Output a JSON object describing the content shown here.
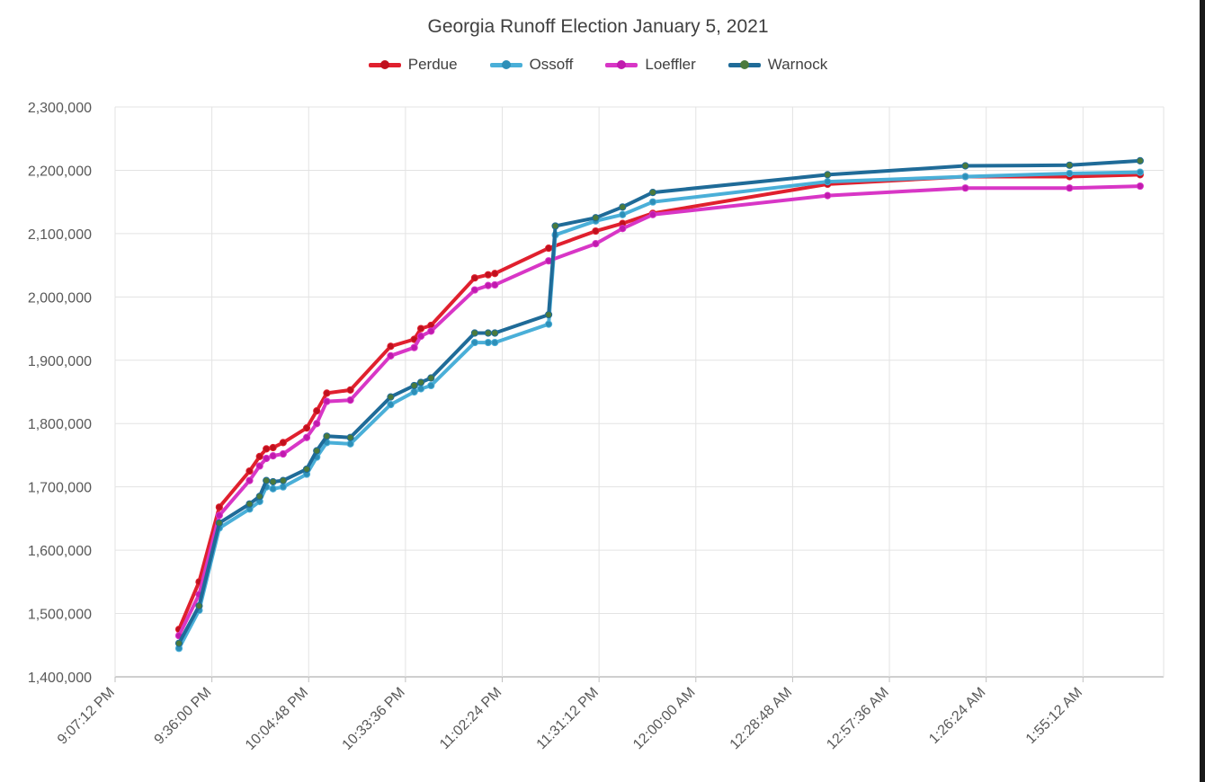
{
  "chart_data": {
    "type": "line",
    "title": "Georgia Runoff Election January 5, 2021",
    "xlabel": "",
    "ylabel": "",
    "ylim": [
      1400000,
      2300000
    ],
    "y_ticks": [
      1400000,
      1500000,
      1600000,
      1700000,
      1800000,
      1900000,
      2000000,
      2100000,
      2200000,
      2300000
    ],
    "x_ticks": [
      "9:07:12 PM",
      "9:36:00 PM",
      "10:04:48 PM",
      "10:33:36 PM",
      "11:02:24 PM",
      "11:31:12 PM",
      "12:00:00 AM",
      "12:28:48 AM",
      "12:57:36 AM",
      "1:26:24 AM",
      "1:55:12 AM"
    ],
    "x_tick_minutes": [
      0,
      28.8,
      57.6,
      86.4,
      115.2,
      144,
      172.8,
      201.6,
      230.4,
      259.2,
      288
    ],
    "grid": true,
    "legend_position": "top",
    "series": [
      {
        "name": "Perdue",
        "color": "#e0202e",
        "marker_color": "#c0101e",
        "x": [
          19,
          25,
          31,
          40,
          43,
          45,
          47,
          50,
          57,
          60,
          63,
          70,
          82,
          89,
          91,
          94,
          107,
          111,
          113,
          129,
          143,
          151,
          160,
          212,
          253,
          284,
          305
        ],
        "y": [
          1475000,
          1550000,
          1668000,
          1725000,
          1748000,
          1760000,
          1762000,
          1770000,
          1793000,
          1820000,
          1848000,
          1853000,
          1922000,
          1933000,
          1950000,
          1955000,
          2030000,
          2035000,
          2037000,
          2077000,
          2104000,
          2116000,
          2132000,
          2178000,
          2190000,
          2190000,
          2193000
        ]
      },
      {
        "name": "Ossoff",
        "color": "#4aafd8",
        "marker_color": "#2d8fb8",
        "x": [
          19,
          25,
          31,
          40,
          43,
          45,
          47,
          50,
          57,
          60,
          63,
          70,
          82,
          89,
          91,
          94,
          107,
          111,
          113,
          129,
          131,
          143,
          151,
          160,
          212,
          253,
          284,
          305
        ],
        "y": [
          1445000,
          1505000,
          1635000,
          1665000,
          1677000,
          1700000,
          1697000,
          1700000,
          1720000,
          1747000,
          1770000,
          1768000,
          1830000,
          1850000,
          1855000,
          1860000,
          1928000,
          1928000,
          1928000,
          1957000,
          2098000,
          2120000,
          2130000,
          2150000,
          2182000,
          2190000,
          2195000,
          2197000
        ]
      },
      {
        "name": "Loeffler",
        "color": "#d836c6",
        "marker_color": "#c01aae",
        "x": [
          19,
          25,
          31,
          40,
          43,
          45,
          47,
          50,
          57,
          60,
          63,
          70,
          82,
          89,
          91,
          94,
          107,
          111,
          113,
          129,
          143,
          151,
          160,
          212,
          253,
          284,
          305
        ],
        "y": [
          1465000,
          1530000,
          1655000,
          1710000,
          1733000,
          1745000,
          1749000,
          1752000,
          1778000,
          1800000,
          1835000,
          1837000,
          1907000,
          1920000,
          1938000,
          1946000,
          2011000,
          2018000,
          2019000,
          2057000,
          2084000,
          2108000,
          2130000,
          2160000,
          2172000,
          2172000,
          2175000
        ]
      },
      {
        "name": "Warnock",
        "color": "#1f6b98",
        "marker_color": "#4b7a3c",
        "x": [
          19,
          25,
          31,
          40,
          43,
          45,
          47,
          50,
          57,
          60,
          63,
          70,
          82,
          89,
          91,
          94,
          107,
          111,
          113,
          129,
          131,
          143,
          151,
          160,
          212,
          253,
          284,
          305
        ],
        "y": [
          1453000,
          1512000,
          1643000,
          1673000,
          1685000,
          1710000,
          1708000,
          1710000,
          1728000,
          1757000,
          1780000,
          1778000,
          1842000,
          1860000,
          1865000,
          1872000,
          1943000,
          1943000,
          1943000,
          1972000,
          2112000,
          2125000,
          2142000,
          2165000,
          2193000,
          2207000,
          2208000,
          2215000
        ]
      }
    ]
  }
}
